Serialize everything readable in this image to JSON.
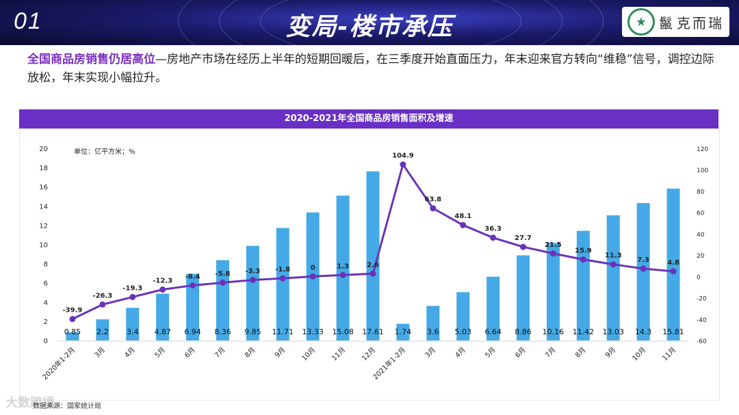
{
  "header": {
    "section_number": "01",
    "title": "变局-楼市承压",
    "logo_text": "克而瑞",
    "logo_mark": "鬣"
  },
  "intro": {
    "highlight": "全国商品房销售仍居高位",
    "text": "—房地产市场在经历上半年的短期回暖后，在三季度开始直面压力，年末迎来官方转向“维稳”信号，调控边际放松，年末实现小幅拉升。"
  },
  "source": "数据来源：国家统计局",
  "watermark": "大数跨境",
  "colors": {
    "bar": "#44a9e6",
    "line": "#6b32b8",
    "title_bar": "#6a2fc4",
    "highlight": "#7b2fbf"
  },
  "chart_data": {
    "type": "bar",
    "title": "2020-2021年全国商品房销售面积及增速",
    "unit_label": "单位：亿平方米；%",
    "categories": [
      "2020年1-2月",
      "3月",
      "4月",
      "5月",
      "6月",
      "7月",
      "8月",
      "9月",
      "10月",
      "11月",
      "12月",
      "2021年1-2月",
      "3月",
      "4月",
      "5月",
      "6月",
      "7月",
      "8月",
      "9月",
      "10月",
      "11月"
    ],
    "series": [
      {
        "name": "销售面积",
        "axis": "left",
        "type": "bar",
        "values": [
          0.85,
          2.2,
          3.4,
          4.87,
          6.94,
          8.36,
          9.85,
          11.71,
          13.33,
          15.08,
          17.61,
          1.74,
          3.6,
          5.03,
          6.64,
          8.86,
          10.16,
          11.42,
          13.03,
          14.3,
          15.81
        ],
        "labels": [
          "0.85",
          "2.2",
          "3.4",
          "4.87",
          "6.94",
          "8.36",
          "9.85",
          "11.71",
          "13.33",
          "15.08",
          "17.61",
          "1.74",
          "3.6",
          "5.03",
          "6.64",
          "8.86",
          "10.16",
          "11.42",
          "13.03",
          "14.3",
          "15.81"
        ]
      },
      {
        "name": "增速",
        "axis": "right",
        "type": "line",
        "values": [
          -39.9,
          -26.3,
          -19.3,
          -12.3,
          -8.4,
          -5.8,
          -3.3,
          -1.8,
          0,
          1.3,
          2.6,
          104.9,
          63.8,
          48.1,
          36.3,
          27.7,
          21.5,
          15.9,
          11.3,
          7.3,
          4.8
        ],
        "labels": [
          "-39.9",
          "-26.3",
          "-19.3",
          "-12.3",
          "-8.4",
          "-5.8",
          "-3.3",
          "-1.8",
          "0",
          "1.3",
          "2.6",
          "104.9",
          "63.8",
          "48.1",
          "36.3",
          "27.7",
          "21.5",
          "15.9",
          "11.3",
          "7.3",
          "4.8"
        ]
      }
    ],
    "y_left": {
      "min": 0,
      "max": 20,
      "ticks": [
        "0",
        "2",
        "4",
        "6",
        "8",
        "10",
        "12",
        "14",
        "16",
        "18",
        "20"
      ]
    },
    "y_right": {
      "min": -60,
      "max": 120,
      "ticks": [
        "-60",
        "-40",
        "-20",
        "0",
        "20",
        "40",
        "60",
        "80",
        "100",
        "120"
      ]
    }
  }
}
